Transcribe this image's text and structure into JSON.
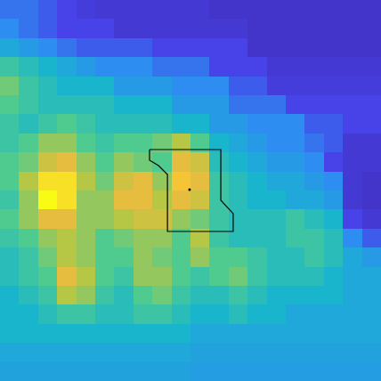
{
  "chart_data": {
    "type": "heatmap",
    "tick_labels": false,
    "xlim": [
      -0.5,
      19.5
    ],
    "ylim": [
      19.5,
      -0.5
    ],
    "zlim": [
      0,
      1
    ],
    "cells": [
      [
        0.25,
        0.25,
        0.2,
        0.15,
        0.12,
        0.1,
        0.1,
        0.1,
        0.1,
        0.1,
        0.1,
        0.08,
        0.08,
        0.08,
        0.08,
        0.08,
        0.08,
        0.08,
        0.08,
        0.08
      ],
      [
        0.3,
        0.25,
        0.2,
        0.15,
        0.15,
        0.15,
        0.1,
        0.1,
        0.1,
        0.1,
        0.1,
        0.1,
        0.1,
        0.08,
        0.08,
        0.08,
        0.08,
        0.08,
        0.08,
        0.08
      ],
      [
        0.4,
        0.35,
        0.3,
        0.25,
        0.2,
        0.2,
        0.2,
        0.2,
        0.15,
        0.15,
        0.15,
        0.15,
        0.15,
        0.08,
        0.08,
        0.08,
        0.08,
        0.08,
        0.08,
        0.08
      ],
      [
        0.55,
        0.5,
        0.45,
        0.4,
        0.35,
        0.3,
        0.3,
        0.3,
        0.25,
        0.25,
        0.25,
        0.15,
        0.15,
        0.15,
        0.1,
        0.1,
        0.1,
        0.1,
        0.1,
        0.1
      ],
      [
        0.65,
        0.55,
        0.5,
        0.45,
        0.45,
        0.45,
        0.35,
        0.35,
        0.35,
        0.3,
        0.3,
        0.3,
        0.2,
        0.2,
        0.12,
        0.12,
        0.12,
        0.12,
        0.12,
        0.12
      ],
      [
        0.6,
        0.55,
        0.5,
        0.5,
        0.5,
        0.5,
        0.45,
        0.45,
        0.45,
        0.35,
        0.35,
        0.35,
        0.25,
        0.25,
        0.25,
        0.15,
        0.15,
        0.15,
        0.15,
        0.15
      ],
      [
        0.55,
        0.5,
        0.55,
        0.6,
        0.55,
        0.5,
        0.5,
        0.5,
        0.5,
        0.45,
        0.45,
        0.35,
        0.35,
        0.3,
        0.3,
        0.3,
        0.2,
        0.2,
        0.15,
        0.15
      ],
      [
        0.55,
        0.6,
        0.7,
        0.7,
        0.6,
        0.55,
        0.6,
        0.6,
        0.65,
        0.75,
        0.6,
        0.45,
        0.4,
        0.35,
        0.3,
        0.3,
        0.25,
        0.2,
        0.1,
        0.1
      ],
      [
        0.6,
        0.65,
        0.8,
        0.85,
        0.7,
        0.6,
        0.7,
        0.65,
        0.6,
        0.85,
        0.8,
        0.5,
        0.45,
        0.4,
        0.35,
        0.35,
        0.3,
        0.15,
        0.1,
        0.1
      ],
      [
        0.6,
        0.75,
        0.95,
        0.95,
        0.75,
        0.65,
        0.8,
        0.85,
        0.7,
        0.9,
        0.85,
        0.55,
        0.5,
        0.45,
        0.4,
        0.4,
        0.35,
        0.3,
        0.1,
        0.08
      ],
      [
        0.55,
        0.7,
        1.0,
        0.95,
        0.7,
        0.7,
        0.85,
        0.85,
        0.75,
        0.85,
        0.8,
        0.55,
        0.5,
        0.45,
        0.45,
        0.4,
        0.4,
        0.35,
        0.1,
        0.08
      ],
      [
        0.6,
        0.7,
        0.85,
        0.85,
        0.7,
        0.7,
        0.75,
        0.8,
        0.8,
        0.7,
        0.65,
        0.55,
        0.5,
        0.5,
        0.5,
        0.55,
        0.5,
        0.45,
        0.15,
        0.1
      ],
      [
        0.55,
        0.6,
        0.7,
        0.75,
        0.7,
        0.6,
        0.65,
        0.7,
        0.7,
        0.6,
        0.75,
        0.55,
        0.5,
        0.5,
        0.5,
        0.55,
        0.55,
        0.5,
        0.3,
        0.2
      ],
      [
        0.5,
        0.55,
        0.65,
        0.75,
        0.7,
        0.6,
        0.6,
        0.7,
        0.65,
        0.6,
        0.7,
        0.6,
        0.6,
        0.55,
        0.5,
        0.5,
        0.55,
        0.5,
        0.4,
        0.35
      ],
      [
        0.5,
        0.55,
        0.6,
        0.85,
        0.75,
        0.6,
        0.55,
        0.7,
        0.7,
        0.6,
        0.55,
        0.6,
        0.65,
        0.55,
        0.5,
        0.5,
        0.5,
        0.45,
        0.4,
        0.4
      ],
      [
        0.45,
        0.5,
        0.55,
        0.75,
        0.7,
        0.55,
        0.5,
        0.6,
        0.65,
        0.55,
        0.5,
        0.5,
        0.55,
        0.5,
        0.45,
        0.45,
        0.45,
        0.45,
        0.4,
        0.4
      ],
      [
        0.45,
        0.45,
        0.5,
        0.55,
        0.55,
        0.5,
        0.5,
        0.55,
        0.55,
        0.5,
        0.45,
        0.45,
        0.5,
        0.45,
        0.45,
        0.4,
        0.4,
        0.4,
        0.4,
        0.4
      ],
      [
        0.45,
        0.45,
        0.45,
        0.45,
        0.45,
        0.45,
        0.45,
        0.45,
        0.45,
        0.45,
        0.4,
        0.4,
        0.4,
        0.4,
        0.4,
        0.4,
        0.4,
        0.4,
        0.4,
        0.4
      ],
      [
        0.4,
        0.4,
        0.4,
        0.4,
        0.4,
        0.4,
        0.4,
        0.4,
        0.4,
        0.4,
        0.38,
        0.38,
        0.38,
        0.38,
        0.38,
        0.38,
        0.38,
        0.38,
        0.38,
        0.38
      ],
      [
        0.38,
        0.38,
        0.38,
        0.38,
        0.38,
        0.38,
        0.38,
        0.38,
        0.38,
        0.38,
        0.36,
        0.36,
        0.36,
        0.36,
        0.36,
        0.36,
        0.36,
        0.36,
        0.36,
        0.36
      ]
    ],
    "outline": {
      "x": [
        7.35,
        11.09,
        11.09,
        11.74,
        11.74,
        8.29,
        8.29,
        7.82,
        7.35,
        7.35
      ],
      "y": [
        7.35,
        7.35,
        10.01,
        10.71,
        11.65,
        11.65,
        8.66,
        8.19,
        7.91,
        7.35
      ],
      "color": "#000000"
    },
    "point": {
      "x": 9.45,
      "y": 9.45,
      "color": "#000000"
    }
  }
}
